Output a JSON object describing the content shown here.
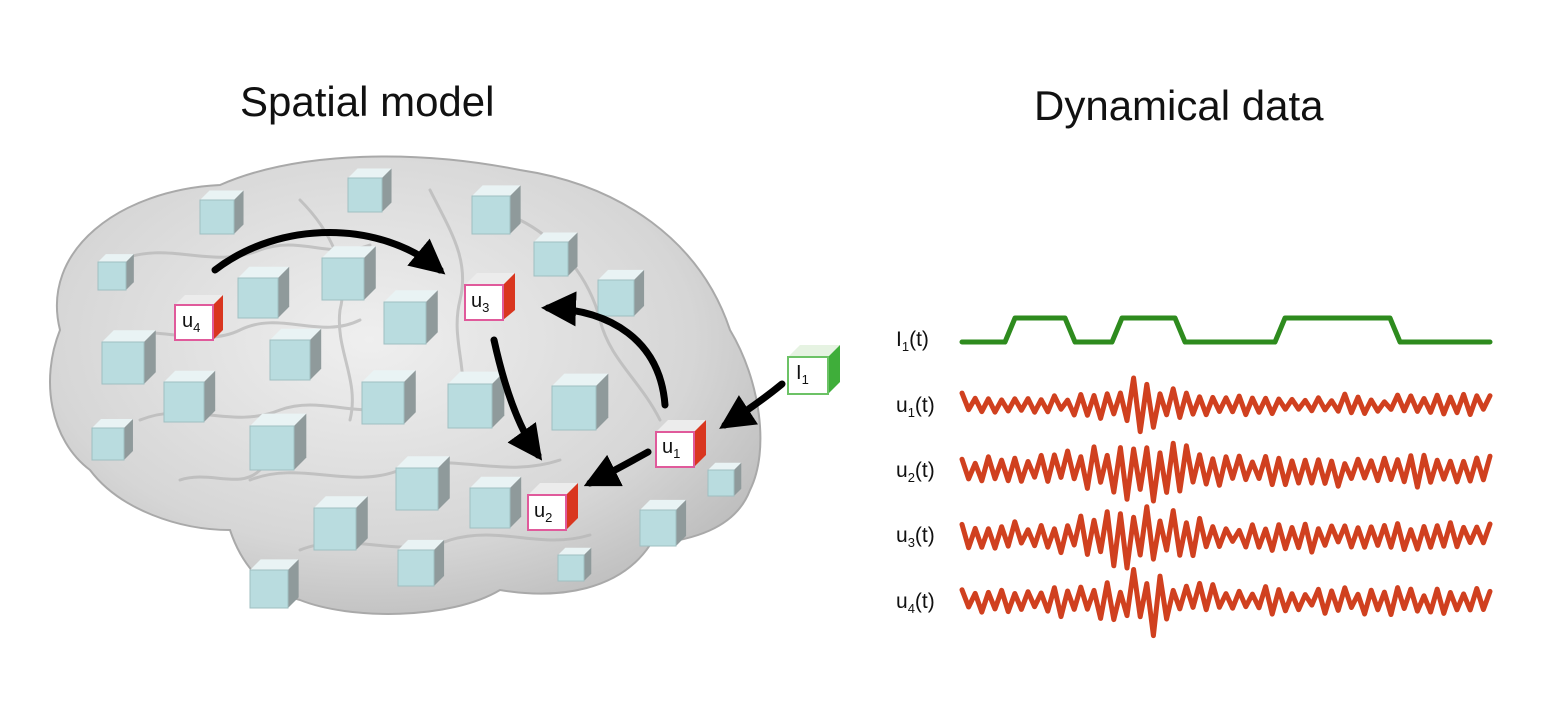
{
  "titles": {
    "spatial": "Spatial model",
    "dynamical": "Dynamical data"
  },
  "nodes": [
    {
      "id": "u4",
      "base": "u",
      "sub": "4"
    },
    {
      "id": "u3",
      "base": "u",
      "sub": "3"
    },
    {
      "id": "u1",
      "base": "u",
      "sub": "1"
    },
    {
      "id": "u2",
      "base": "u",
      "sub": "2"
    },
    {
      "id": "I1",
      "base": "I",
      "sub": "1"
    }
  ],
  "traces": [
    {
      "base": "I",
      "sub": "1",
      "suffix": "(t)",
      "color": "#2e8b1e"
    },
    {
      "base": "u",
      "sub": "1",
      "suffix": "(t)",
      "color": "#d0401f"
    },
    {
      "base": "u",
      "sub": "2",
      "suffix": "(t)",
      "color": "#d0401f"
    },
    {
      "base": "u",
      "sub": "3",
      "suffix": "(t)",
      "color": "#d0401f"
    },
    {
      "base": "u",
      "sub": "4",
      "suffix": "(t)",
      "color": "#d0401f"
    }
  ],
  "colors": {
    "brain": "#d9d9d9",
    "cube": "#b9dcdf",
    "active_node": "#d9361f",
    "input_node": "#3fae3a",
    "arrow": "#000000"
  }
}
